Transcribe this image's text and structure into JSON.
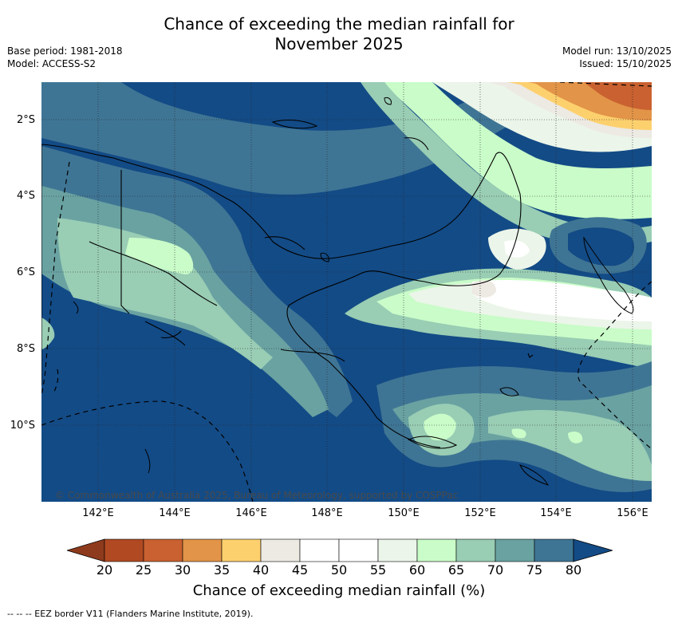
{
  "title_line1": "Chance of exceeding the median rainfall for",
  "title_line2": "November 2025",
  "base_period": "Base period: 1981-2018",
  "model": "Model: ACCESS-S2",
  "model_run": "Model run: 13/10/2025",
  "issued": "Issued: 15/10/2025",
  "lat_labels": [
    "2°S",
    "4°S",
    "6°S",
    "8°S",
    "10°S"
  ],
  "lon_labels": [
    "142°E",
    "144°E",
    "146°E",
    "148°E",
    "150°E",
    "152°E",
    "154°E",
    "156°E"
  ],
  "copyright": "© Commonwealth of Australia 2025, Bureau of Meteorology, supported by COSPPac",
  "colorbar": {
    "ticks": [
      "20",
      "25",
      "30",
      "35",
      "40",
      "45",
      "50",
      "55",
      "60",
      "65",
      "70",
      "75",
      "80"
    ],
    "colors": [
      "#8e3a1c",
      "#b14a22",
      "#c96130",
      "#e29448",
      "#fdd06e",
      "#ede9e3",
      "#ffffff",
      "#ffffff",
      "#ebf5e9",
      "#c9fcc8",
      "#99cdb4",
      "#6aa2a2",
      "#3f7594",
      "#134b86"
    ],
    "title": "Chance of exceeding median rainfall (%)"
  },
  "footnote": "--  --  -- EEZ border V11 (Flanders Marine Institute, 2019)."
}
